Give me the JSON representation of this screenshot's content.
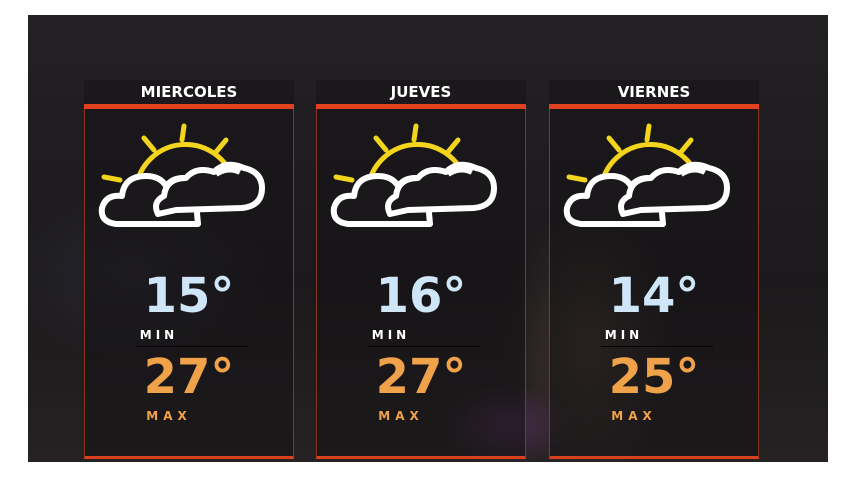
{
  "days": [
    {
      "name": "MIERCOLES",
      "min": "15°",
      "min_label": "MIN",
      "max": "27°",
      "max_label": "MAX",
      "icon": "partly-cloudy-icon"
    },
    {
      "name": "JUEVES",
      "min": "16°",
      "min_label": "MIN",
      "max": "27°",
      "max_label": "MAX",
      "icon": "partly-cloudy-icon"
    },
    {
      "name": "VIERNES",
      "min": "14°",
      "min_label": "MIN",
      "max": "25°",
      "max_label": "MAX",
      "icon": "partly-cloudy-icon"
    }
  ],
  "colors": {
    "accent": "#e2411f",
    "min_temp": "#cfe6f8",
    "max_temp": "#f0a24a",
    "sun": "#f2d51c"
  }
}
